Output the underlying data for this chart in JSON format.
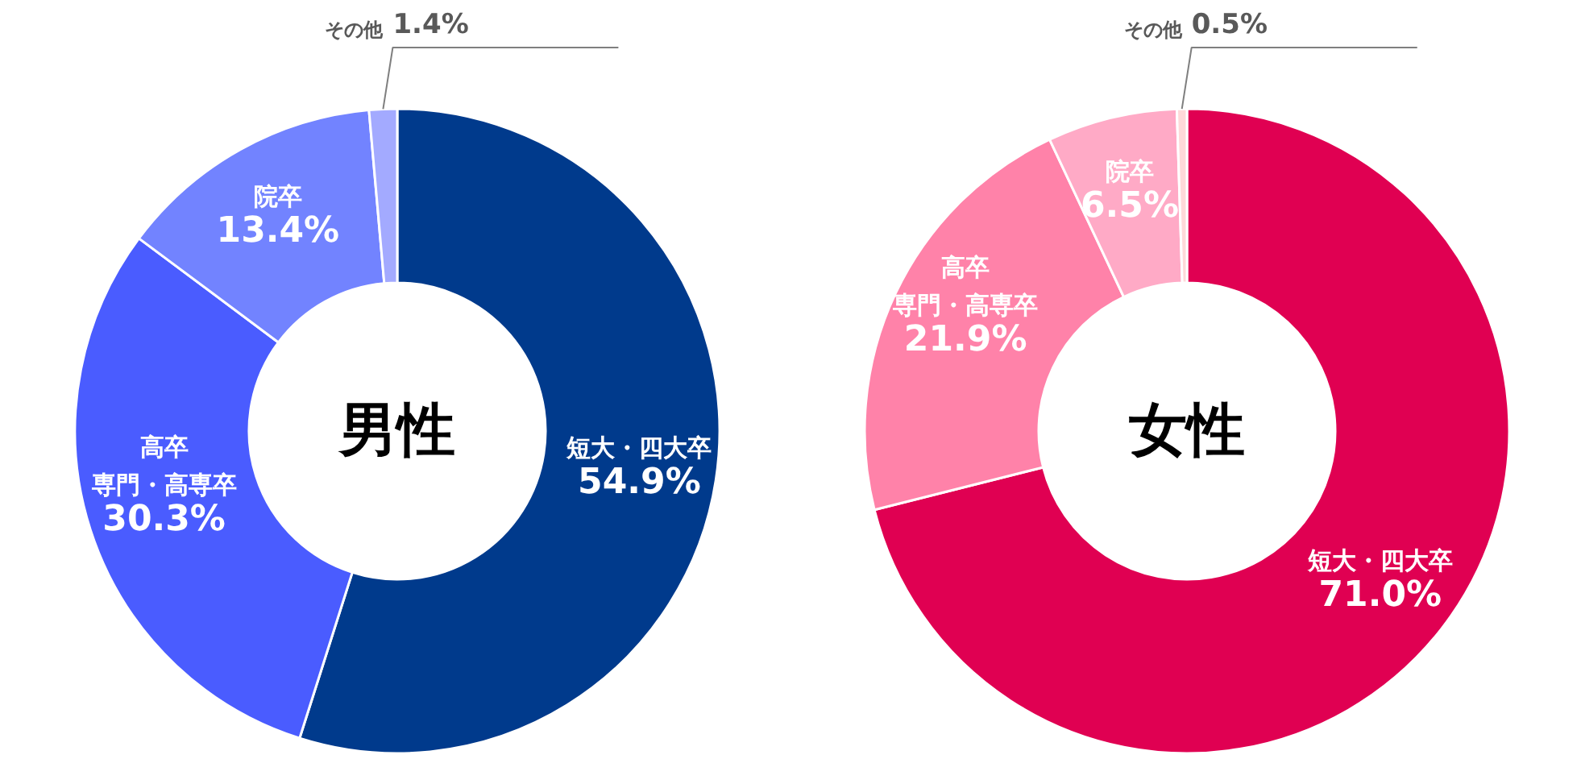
{
  "chart_data": [
    {
      "type": "donut",
      "title": "男性",
      "categories": [
        "短大・四大卒",
        "高卒専門・高専卒",
        "院卒",
        "その他"
      ],
      "values": [
        54.9,
        30.3,
        13.4,
        1.4
      ],
      "colors": [
        "#003a8c",
        "#4a5cff",
        "#7283ff",
        "#a3aaff"
      ],
      "value_labels": [
        "54.9%",
        "30.3%",
        "13.4%",
        "1.4%"
      ]
    },
    {
      "type": "donut",
      "title": "女性",
      "categories": [
        "短大・四大卒",
        "高卒専門・高専卒",
        "院卒",
        "その他"
      ],
      "values": [
        71.0,
        21.9,
        6.5,
        0.5
      ],
      "colors": [
        "#e00052",
        "#ff82a9",
        "#ffaac6",
        "#ffd9d9"
      ],
      "value_labels": [
        "71.0%",
        "21.9%",
        "6.5%",
        "0.5%"
      ]
    }
  ]
}
